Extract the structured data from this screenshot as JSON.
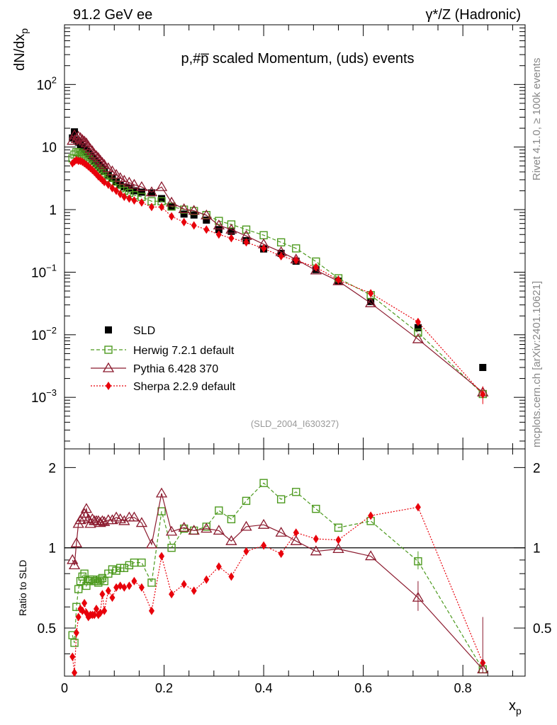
{
  "header": {
    "left": "91.2 GeV ee",
    "right": "γ*/Z (Hadronic)"
  },
  "side": {
    "rivet": "Rivet 4.1.0, ≥ 100k events",
    "mcplots": "mcplots.cern.ch [arXiv:2401.10621]"
  },
  "chart_data": {
    "type": "scatter",
    "title": "p,#p̅ scaled Momentum, (uds) events",
    "analysis_id": "(SLD_2004_I630327)",
    "xlabel": "x_p",
    "ylabel": "dN/dx_p",
    "ratio_ylabel": "Ratio to SLD",
    "xlim": [
      0,
      0.925
    ],
    "ylim": [
      0.00015,
      900
    ],
    "ratio_ylim": [
      0.33,
      2.35
    ],
    "x_ticks": [
      "0",
      "0.2",
      "0.4",
      "0.6",
      "0.8"
    ],
    "y_ticks": [
      "10^-3",
      "10^-2",
      "10^-1",
      "1",
      "10",
      "10^2"
    ],
    "ratio_ticks": [
      "0.5",
      "1",
      "2"
    ],
    "x": [
      0.016,
      0.02,
      0.024,
      0.028,
      0.032,
      0.036,
      0.04,
      0.044,
      0.048,
      0.052,
      0.056,
      0.06,
      0.064,
      0.068,
      0.072,
      0.076,
      0.08,
      0.088,
      0.096,
      0.104,
      0.112,
      0.12,
      0.13,
      0.14,
      0.155,
      0.175,
      0.195,
      0.215,
      0.24,
      0.26,
      0.285,
      0.31,
      0.335,
      0.365,
      0.4,
      0.435,
      0.465,
      0.505,
      0.55,
      0.615,
      0.71,
      0.84
    ],
    "series": [
      {
        "name": "SLD",
        "marker": "square",
        "color": "#000000",
        "values": [
          14,
          17.5,
          13,
          12,
          11,
          10,
          9.2,
          8.5,
          7.8,
          7.2,
          6.6,
          6.1,
          5.6,
          5.2,
          4.8,
          4.45,
          4.1,
          3.6,
          3.2,
          2.8,
          2.5,
          2.3,
          2.2,
          2.0,
          1.9,
          1.85,
          1.5,
          1.1,
          0.85,
          0.82,
          0.68,
          0.48,
          0.45,
          0.32,
          0.235,
          0.2,
          0.15,
          0.11,
          0.072,
          0.034,
          0.013,
          0.003
        ]
      },
      {
        "name": "Herwig 7.2.1 default",
        "marker": "open-square",
        "color": "#4d9a1f",
        "values": [
          6.6,
          7.6,
          8.3,
          8.15,
          8.15,
          7.7,
          7.3,
          6.9,
          6.4,
          6.0,
          5.5,
          5.1,
          4.7,
          4.4,
          4.1,
          3.8,
          3.5,
          3.2,
          2.8,
          2.5,
          2.2,
          2.0,
          1.85,
          1.7,
          1.6,
          1.36,
          1.36,
          1.12,
          1.0,
          0.95,
          0.82,
          0.66,
          0.58,
          0.48,
          0.39,
          0.3,
          0.24,
          0.148,
          0.08,
          0.043,
          0.0108,
          0.00113
        ]
      },
      {
        "name": "Pythia 6.428 370",
        "marker": "open-triangle",
        "color": "#8b1a2e",
        "values": [
          12.6,
          15.5,
          13.5,
          14.7,
          14,
          13,
          12.3,
          11.5,
          10.3,
          9.3,
          8.6,
          7.7,
          7.2,
          6.7,
          6.1,
          5.6,
          5.2,
          4.6,
          4.1,
          3.6,
          3.2,
          2.9,
          2.7,
          2.5,
          2.3,
          1.9,
          2.3,
          1.3,
          1.02,
          0.96,
          0.81,
          0.56,
          0.48,
          0.38,
          0.28,
          0.21,
          0.16,
          0.107,
          0.072,
          0.032,
          0.0085,
          0.0012
        ]
      },
      {
        "name": "Sherpa 2.2.9 default",
        "marker": "diamond",
        "color": "#e8000b",
        "values": [
          5.5,
          5.9,
          6.2,
          6.0,
          6.0,
          5.8,
          5.5,
          5.2,
          4.9,
          4.6,
          4.3,
          4.0,
          3.7,
          3.4,
          3.2,
          2.96,
          2.76,
          2.5,
          2.2,
          2.0,
          1.78,
          1.6,
          1.5,
          1.4,
          1.3,
          1.1,
          1.1,
          0.78,
          0.63,
          0.56,
          0.48,
          0.4,
          0.35,
          0.3,
          0.24,
          0.18,
          0.155,
          0.12,
          0.075,
          0.046,
          0.016,
          0.00112
        ]
      }
    ],
    "ratio_series": [
      {
        "name": "Herwig 7.2.1 default",
        "values": [
          0.47,
          0.44,
          0.6,
          0.7,
          0.75,
          0.78,
          0.8,
          0.72,
          0.75,
          0.76,
          0.76,
          0.75,
          0.75,
          0.74,
          0.76,
          0.77,
          0.75,
          0.8,
          0.83,
          0.82,
          0.84,
          0.84,
          0.86,
          0.88,
          0.88,
          0.74,
          1.37,
          1.0,
          1.18,
          1.16,
          1.2,
          1.38,
          1.28,
          1.5,
          1.75,
          1.52,
          1.62,
          1.4,
          1.19,
          1.26,
          0.89,
          0.35
        ]
      },
      {
        "name": "Pythia 6.428 370",
        "values": [
          0.9,
          0.86,
          1.04,
          1.23,
          1.27,
          1.3,
          1.34,
          1.4,
          1.28,
          1.23,
          1.28,
          1.26,
          1.26,
          1.26,
          1.24,
          1.26,
          1.25,
          1.27,
          1.27,
          1.3,
          1.28,
          1.26,
          1.3,
          1.3,
          1.24,
          1.03,
          1.6,
          1.15,
          1.19,
          1.16,
          1.18,
          1.16,
          1.06,
          1.2,
          1.22,
          1.14,
          1.06,
          0.97,
          0.99,
          0.93,
          0.65,
          0.35
        ]
      },
      {
        "name": "Sherpa 2.2.9 default",
        "values": [
          0.39,
          0.34,
          0.48,
          0.55,
          0.59,
          0.58,
          0.62,
          0.57,
          0.55,
          0.56,
          0.56,
          0.56,
          0.59,
          0.56,
          0.57,
          0.67,
          0.58,
          0.69,
          0.65,
          0.71,
          0.72,
          0.71,
          0.72,
          0.75,
          0.71,
          0.58,
          0.93,
          0.67,
          0.73,
          0.69,
          0.76,
          0.85,
          0.78,
          0.97,
          1.02,
          0.95,
          1.14,
          1.08,
          1.07,
          1.32,
          1.42,
          0.37
        ]
      }
    ]
  }
}
